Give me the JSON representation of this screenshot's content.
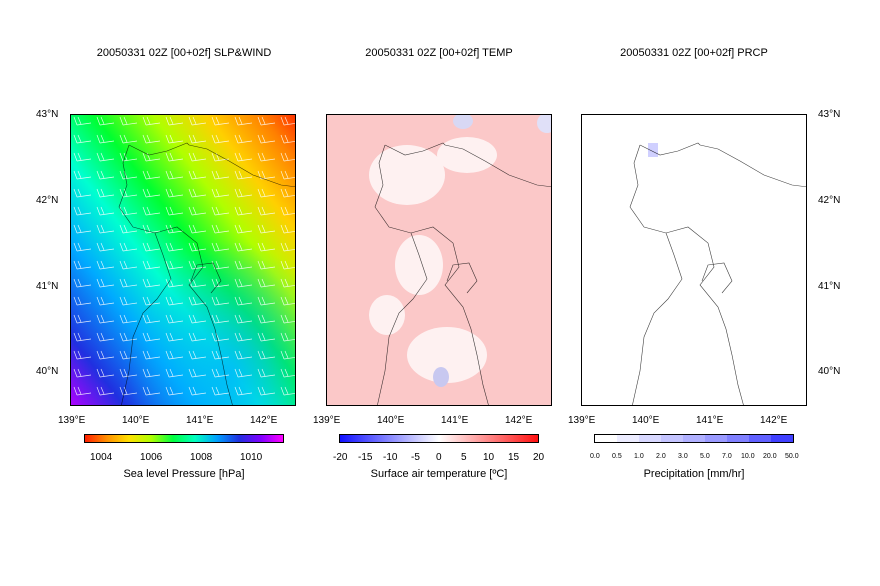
{
  "panels": [
    {
      "title": "20050331 02Z [00+02f] SLP&WIND",
      "colorbar_label": "Sea level Pressure [hPa]",
      "colorbar_ticks": [
        "1004",
        "1006",
        "1008",
        "1010"
      ]
    },
    {
      "title": "20050331 02Z [00+02f] TEMP",
      "colorbar_label": "Surface air temperature [ºC]",
      "colorbar_ticks": [
        "-20",
        "-15",
        "-10",
        "-5",
        "0",
        "5",
        "10",
        "15",
        "20"
      ]
    },
    {
      "title": "20050331 02Z [00+02f] PRCP",
      "colorbar_label": "Precipitation [mm/hr]",
      "colorbar_ticks": [
        "0.0",
        "0.5",
        "1.0",
        "2.0",
        "3.0",
        "5.0",
        "7.0",
        "10.0",
        "20.0",
        "50.0"
      ]
    }
  ],
  "lat_labels": [
    "43°N",
    "42°N",
    "41°N",
    "40°N"
  ],
  "lon_labels": [
    "139°E",
    "140°E",
    "141°E",
    "142°E"
  ],
  "colors": {
    "slp_colorbar": [
      "#ff2a00",
      "#ffb800",
      "#ffff00",
      "#00ff00",
      "#00ffff",
      "#0060ff",
      "#1010c0",
      "#a000ff",
      "#ff00ff"
    ],
    "temp_colorbar": [
      "#1010ff",
      "#ffffff",
      "#ff1010"
    ],
    "prcp_colorbar": [
      "#ffffff",
      "#e6e6ff",
      "#cfcfff",
      "#b8b8ff",
      "#a0a0ff",
      "#8888ff",
      "#7070ff",
      "#5858ff",
      "#3434ff"
    ]
  }
}
